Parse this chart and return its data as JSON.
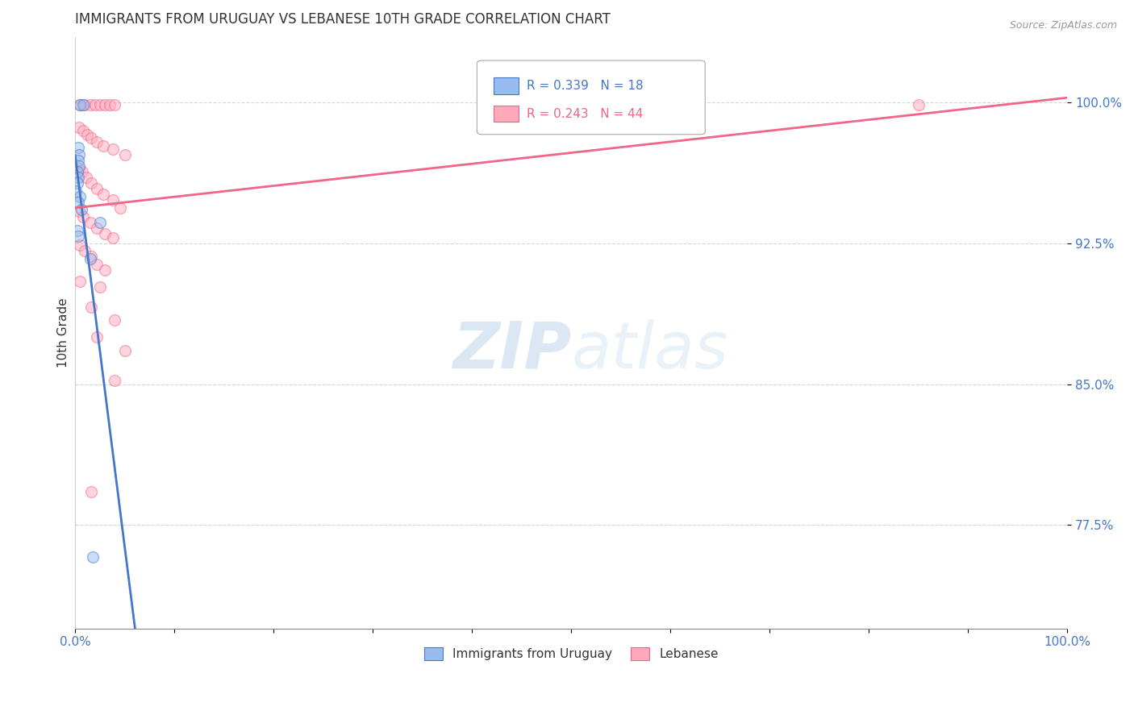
{
  "title": "IMMIGRANTS FROM URUGUAY VS LEBANESE 10TH GRADE CORRELATION CHART",
  "source": "Source: ZipAtlas.com",
  "ylabel": "10th Grade",
  "yaxis_labels": [
    "100.0%",
    "92.5%",
    "85.0%",
    "77.5%"
  ],
  "yaxis_values": [
    1.0,
    0.925,
    0.85,
    0.775
  ],
  "xlim": [
    0.0,
    1.0
  ],
  "ylim": [
    0.72,
    1.035
  ],
  "legend_blue_R": "R = 0.339",
  "legend_blue_N": "N = 18",
  "legend_pink_R": "R = 0.243",
  "legend_pink_N": "N = 44",
  "legend_label_blue": "Immigrants from Uruguay",
  "legend_label_pink": "Lebanese",
  "blue_color": "#99BBEE",
  "pink_color": "#FFAABB",
  "blue_edge_color": "#4477CC",
  "pink_edge_color": "#EE6688",
  "blue_line_color": "#4477CC",
  "pink_line_color": "#EE6688",
  "axis_label_color": "#4477CC",
  "pink_legend_color": "#EE6688",
  "title_color": "#333333",
  "source_color": "#999999",
  "grid_color": "#cccccc",
  "background_color": "#ffffff",
  "watermark_color": "#d8e8f5",
  "marker_size": 100,
  "marker_alpha": 0.5,
  "line_width": 2.0,
  "blue_points": [
    [
      0.005,
      0.999
    ],
    [
      0.008,
      0.999
    ],
    [
      0.003,
      0.976
    ],
    [
      0.004,
      0.972
    ],
    [
      0.003,
      0.969
    ],
    [
      0.004,
      0.966
    ],
    [
      0.002,
      0.963
    ],
    [
      0.003,
      0.96
    ],
    [
      0.002,
      0.957
    ],
    [
      0.001,
      0.953
    ],
    [
      0.005,
      0.95
    ],
    [
      0.003,
      0.947
    ],
    [
      0.006,
      0.943
    ],
    [
      0.025,
      0.936
    ],
    [
      0.002,
      0.932
    ],
    [
      0.003,
      0.929
    ],
    [
      0.015,
      0.917
    ],
    [
      0.018,
      0.758
    ]
  ],
  "pink_points": [
    [
      0.005,
      0.999
    ],
    [
      0.01,
      0.999
    ],
    [
      0.015,
      0.999
    ],
    [
      0.02,
      0.999
    ],
    [
      0.025,
      0.999
    ],
    [
      0.03,
      0.999
    ],
    [
      0.035,
      0.999
    ],
    [
      0.04,
      0.999
    ],
    [
      0.004,
      0.987
    ],
    [
      0.008,
      0.985
    ],
    [
      0.012,
      0.983
    ],
    [
      0.016,
      0.981
    ],
    [
      0.022,
      0.979
    ],
    [
      0.028,
      0.977
    ],
    [
      0.038,
      0.975
    ],
    [
      0.05,
      0.972
    ],
    [
      0.004,
      0.965
    ],
    [
      0.007,
      0.963
    ],
    [
      0.011,
      0.96
    ],
    [
      0.016,
      0.957
    ],
    [
      0.022,
      0.954
    ],
    [
      0.028,
      0.951
    ],
    [
      0.038,
      0.948
    ],
    [
      0.045,
      0.944
    ],
    [
      0.004,
      0.942
    ],
    [
      0.008,
      0.939
    ],
    [
      0.015,
      0.936
    ],
    [
      0.022,
      0.933
    ],
    [
      0.03,
      0.93
    ],
    [
      0.038,
      0.928
    ],
    [
      0.005,
      0.924
    ],
    [
      0.01,
      0.921
    ],
    [
      0.016,
      0.918
    ],
    [
      0.022,
      0.914
    ],
    [
      0.03,
      0.911
    ],
    [
      0.005,
      0.905
    ],
    [
      0.025,
      0.902
    ],
    [
      0.016,
      0.891
    ],
    [
      0.04,
      0.884
    ],
    [
      0.022,
      0.875
    ],
    [
      0.05,
      0.868
    ],
    [
      0.04,
      0.852
    ],
    [
      0.85,
      0.999
    ],
    [
      0.016,
      0.793
    ]
  ]
}
